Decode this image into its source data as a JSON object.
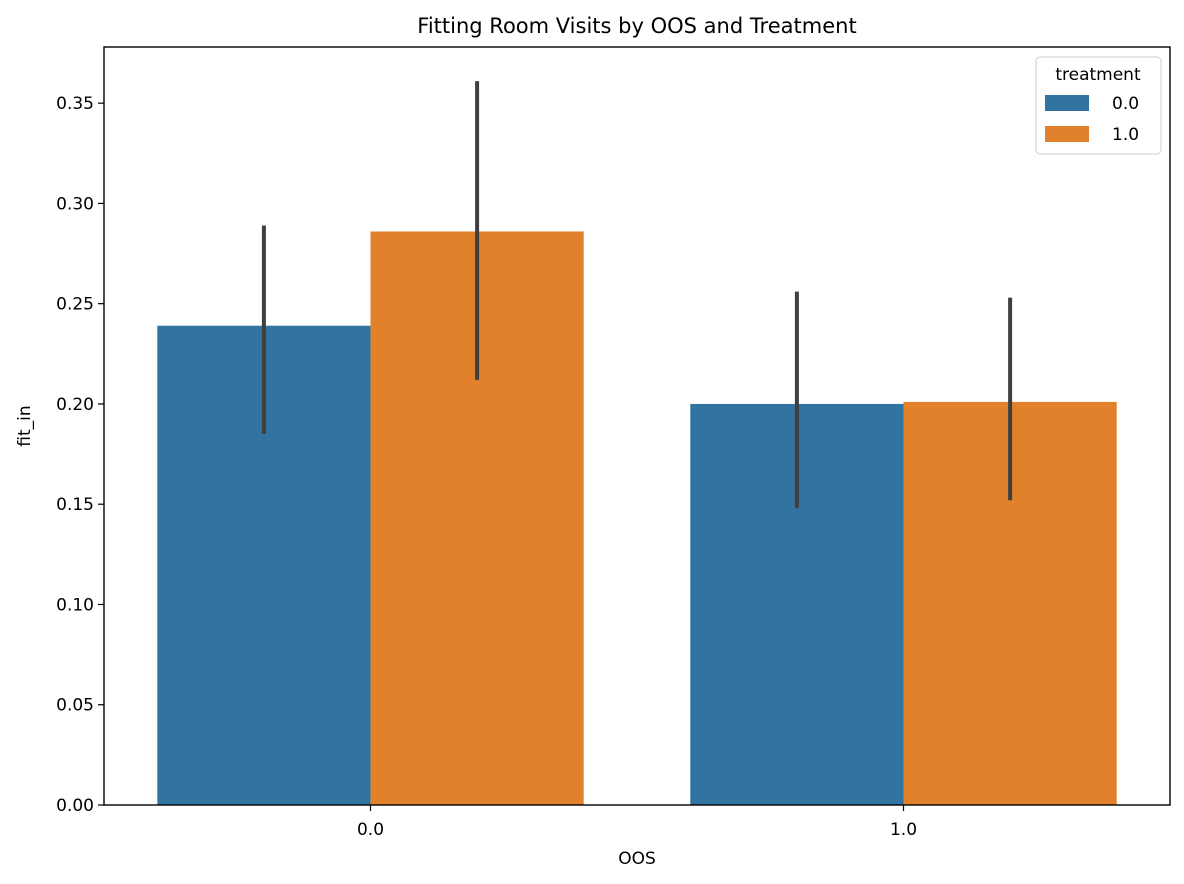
{
  "chart_data": {
    "type": "bar",
    "title": "Fitting Room Visits by OOS and Treatment",
    "xlabel": "OOS",
    "ylabel": "fit_in",
    "categories": [
      "0.0",
      "1.0"
    ],
    "ylim": [
      0,
      0.378
    ],
    "yticks": [
      0.0,
      0.05,
      0.1,
      0.15,
      0.2,
      0.25,
      0.3,
      0.35
    ],
    "ytick_labels": [
      "0.00",
      "0.05",
      "0.10",
      "0.15",
      "0.20",
      "0.25",
      "0.30",
      "0.35"
    ],
    "grid": false,
    "legend": {
      "title": "treatment",
      "placement": "top-right"
    },
    "series": [
      {
        "name": "0.0",
        "color": "#3274a1",
        "values": [
          0.239,
          0.2
        ],
        "ci_low": [
          0.185,
          0.148
        ],
        "ci_high": [
          0.289,
          0.256
        ]
      },
      {
        "name": "1.0",
        "color": "#e1812c",
        "values": [
          0.286,
          0.201
        ],
        "ci_low": [
          0.212,
          0.152
        ],
        "ci_high": [
          0.361,
          0.253
        ]
      }
    ],
    "error_bar_color": "#3f3f3f"
  }
}
